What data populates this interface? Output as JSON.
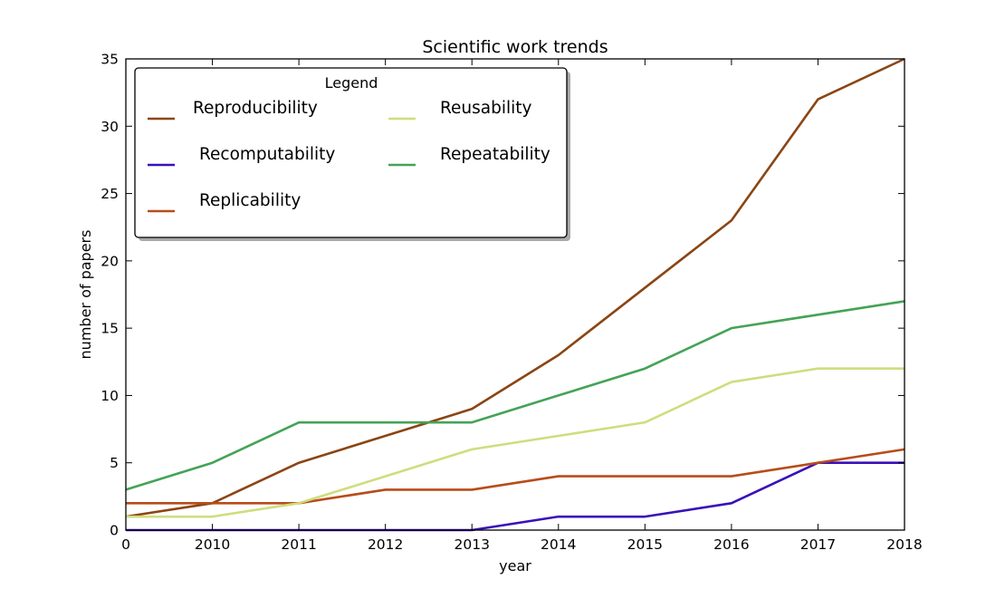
{
  "chart_data": {
    "type": "line",
    "title": "Scientific work trends",
    "xlabel": "year",
    "ylabel": "number of papers",
    "categories": [
      "0",
      "2010",
      "2011",
      "2012",
      "2013",
      "2014",
      "2015",
      "2016",
      "2017",
      "2018"
    ],
    "ylim": [
      0,
      35
    ],
    "yticks": [
      0,
      5,
      10,
      15,
      20,
      25,
      30,
      35
    ],
    "grid": false,
    "legend": {
      "title": "Legend",
      "placement": "top-left",
      "columns": 2
    },
    "series": [
      {
        "name": "Reproducibility",
        "color": "#8b4513",
        "values": [
          1,
          2,
          5,
          7,
          9,
          13,
          18,
          23,
          32,
          35
        ]
      },
      {
        "name": "Recomputability",
        "color": "#3a10b8",
        "values": [
          0,
          0,
          0,
          0,
          0,
          1,
          1,
          2,
          5,
          5
        ]
      },
      {
        "name": "Replicability",
        "color": "#b84c1a",
        "values": [
          2,
          2,
          2,
          3,
          3,
          4,
          4,
          4,
          5,
          6
        ]
      },
      {
        "name": "Reusability",
        "color": "#cfdd7e",
        "values": [
          1,
          1,
          2,
          4,
          6,
          7,
          8,
          11,
          12,
          12
        ]
      },
      {
        "name": "Repeatability",
        "color": "#44a356",
        "values": [
          3,
          5,
          8,
          8,
          8,
          10,
          12,
          15,
          16,
          17
        ]
      }
    ]
  }
}
